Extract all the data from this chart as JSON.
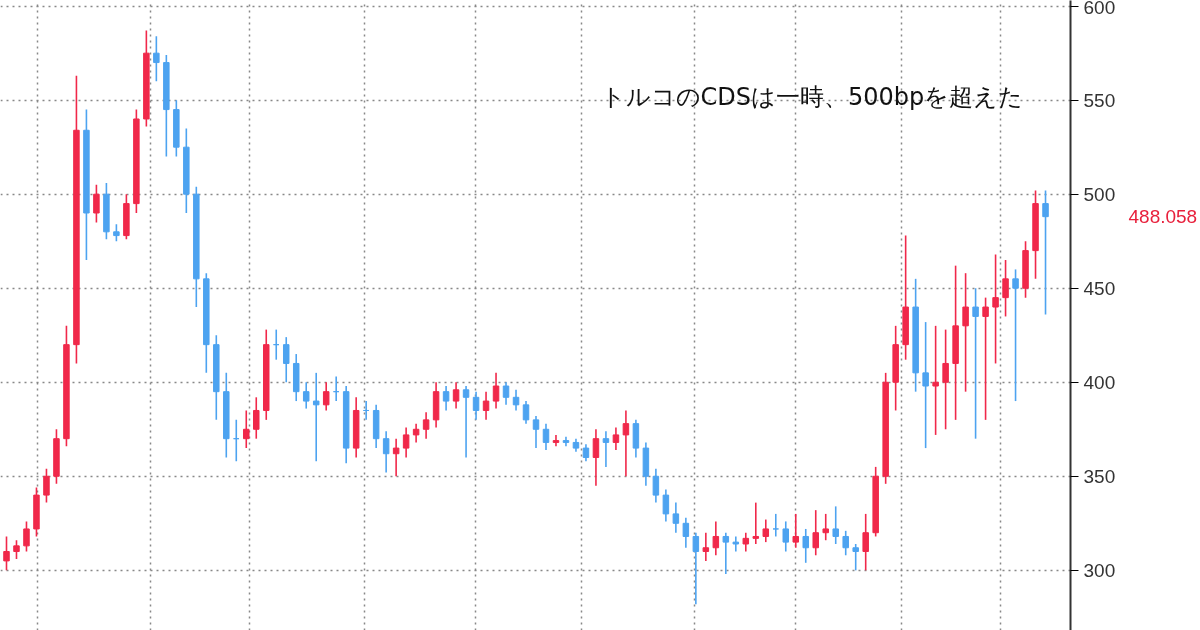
{
  "chart_data": {
    "type": "candlestick",
    "categories": [
      null,
      null,
      null,
      null,
      null,
      null,
      null,
      null,
      null,
      null,
      null,
      null,
      null,
      null,
      null,
      null,
      null,
      null,
      null,
      null,
      null,
      null,
      null,
      null,
      null,
      null,
      null,
      null,
      null,
      null,
      null,
      null,
      null,
      null,
      null,
      null,
      null,
      null,
      null,
      null,
      null,
      null,
      null,
      null,
      null,
      null,
      null,
      null,
      null,
      null,
      null,
      null,
      null,
      null,
      null,
      null,
      null,
      null,
      null,
      null,
      null,
      null,
      null,
      null,
      null,
      null,
      null,
      null,
      null,
      null,
      null,
      null,
      null,
      null,
      null,
      null,
      null,
      null,
      null,
      null,
      null,
      null,
      null,
      null,
      null,
      null,
      null,
      null,
      null,
      null,
      null,
      null,
      null,
      null,
      null,
      null,
      null,
      null,
      null,
      null,
      null,
      null,
      null,
      null,
      null
    ],
    "ohlc": [
      [
        305,
        318,
        300,
        310
      ],
      [
        310,
        316,
        306,
        313
      ],
      [
        313,
        326,
        310,
        322
      ],
      [
        322,
        344,
        318,
        340
      ],
      [
        340,
        354,
        336,
        350
      ],
      [
        350,
        375,
        346,
        370
      ],
      [
        370,
        430,
        366,
        420
      ],
      [
        420,
        563,
        410,
        534
      ],
      [
        534,
        545,
        465,
        490
      ],
      [
        490,
        505,
        485,
        500
      ],
      [
        500,
        506,
        476,
        480
      ],
      [
        480,
        484,
        475,
        478
      ],
      [
        478,
        500,
        476,
        495
      ],
      [
        495,
        545,
        490,
        540
      ],
      [
        540,
        587,
        536,
        575
      ],
      [
        575,
        584,
        560,
        570
      ],
      [
        570,
        574,
        520,
        545
      ],
      [
        545,
        550,
        520,
        525
      ],
      [
        525,
        535,
        490,
        500
      ],
      [
        500,
        504,
        440,
        455
      ],
      [
        455,
        458,
        405,
        420
      ],
      [
        420,
        425,
        380,
        395
      ],
      [
        395,
        405,
        360,
        370
      ],
      [
        370,
        380,
        358,
        370
      ],
      [
        370,
        385,
        365,
        375
      ],
      [
        375,
        392,
        370,
        385
      ],
      [
        385,
        428,
        380,
        420
      ],
      [
        420,
        428,
        412,
        420
      ],
      [
        420,
        424,
        400,
        410
      ],
      [
        410,
        415,
        390,
        395
      ],
      [
        395,
        400,
        386,
        390
      ],
      [
        390,
        405,
        358,
        388
      ],
      [
        388,
        400,
        385,
        395
      ],
      [
        395,
        403,
        390,
        395
      ],
      [
        395,
        398,
        357,
        365
      ],
      [
        365,
        392,
        360,
        385
      ],
      [
        385,
        390,
        380,
        385
      ],
      [
        385,
        388,
        365,
        370
      ],
      [
        370,
        374,
        352,
        362
      ],
      [
        362,
        370,
        350,
        365
      ],
      [
        365,
        376,
        360,
        372
      ],
      [
        372,
        378,
        368,
        375
      ],
      [
        375,
        384,
        370,
        380
      ],
      [
        380,
        400,
        376,
        395
      ],
      [
        395,
        398,
        385,
        390
      ],
      [
        390,
        400,
        386,
        396
      ],
      [
        396,
        398,
        360,
        392
      ],
      [
        392,
        395,
        380,
        385
      ],
      [
        385,
        395,
        380,
        390
      ],
      [
        390,
        405,
        386,
        398
      ],
      [
        398,
        400,
        388,
        392
      ],
      [
        392,
        396,
        385,
        388
      ],
      [
        388,
        390,
        378,
        380
      ],
      [
        380,
        382,
        365,
        375
      ],
      [
        375,
        378,
        364,
        368
      ],
      [
        368,
        372,
        366,
        369
      ],
      [
        369,
        371,
        366,
        368
      ],
      [
        368,
        370,
        363,
        365
      ],
      [
        365,
        367,
        358,
        360
      ],
      [
        360,
        375,
        345,
        370
      ],
      [
        370,
        374,
        355,
        368
      ],
      [
        368,
        376,
        364,
        372
      ],
      [
        372,
        385,
        350,
        378
      ],
      [
        378,
        380,
        360,
        365
      ],
      [
        365,
        368,
        345,
        350
      ],
      [
        350,
        354,
        336,
        340
      ],
      [
        340,
        343,
        326,
        330
      ],
      [
        330,
        336,
        320,
        325
      ],
      [
        325,
        328,
        312,
        318
      ],
      [
        318,
        320,
        282,
        310
      ],
      [
        310,
        320,
        305,
        312
      ],
      [
        312,
        326,
        308,
        318
      ],
      [
        318,
        320,
        298,
        315
      ],
      [
        315,
        318,
        310,
        314
      ],
      [
        314,
        320,
        310,
        317
      ],
      [
        317,
        336,
        314,
        318
      ],
      [
        318,
        327,
        315,
        322
      ],
      [
        322,
        330,
        318,
        322
      ],
      [
        322,
        326,
        310,
        315
      ],
      [
        315,
        330,
        312,
        318
      ],
      [
        318,
        322,
        304,
        312
      ],
      [
        312,
        332,
        308,
        320
      ],
      [
        320,
        330,
        316,
        322
      ],
      [
        322,
        334,
        314,
        318
      ],
      [
        318,
        321,
        308,
        312
      ],
      [
        312,
        314,
        300,
        310
      ],
      [
        310,
        330,
        300,
        320
      ],
      [
        320,
        355,
        318,
        350
      ],
      [
        350,
        405,
        346,
        400
      ],
      [
        400,
        430,
        385,
        420
      ],
      [
        420,
        478,
        412,
        440
      ],
      [
        440,
        455,
        395,
        405
      ],
      [
        405,
        432,
        365,
        398
      ],
      [
        398,
        430,
        372,
        400
      ],
      [
        400,
        428,
        375,
        410
      ],
      [
        410,
        462,
        380,
        430
      ],
      [
        430,
        458,
        395,
        440
      ],
      [
        440,
        450,
        370,
        435
      ],
      [
        435,
        445,
        380,
        440
      ],
      [
        440,
        468,
        410,
        445
      ],
      [
        445,
        465,
        435,
        455
      ],
      [
        455,
        460,
        390,
        450
      ],
      [
        450,
        475,
        445,
        470
      ],
      [
        470,
        502,
        455,
        495
      ],
      [
        495,
        502,
        436,
        488.058
      ]
    ],
    "colors": [
      "#f0284a",
      "#f0284a",
      "#f0284a",
      "#f0284a",
      "#f0284a",
      "#f0284a",
      "#f0284a",
      "#f0284a",
      "#4da3f0",
      "#f0284a",
      "#4da3f0",
      "#4da3f0",
      "#f0284a",
      "#f0284a",
      "#f0284a",
      "#4da3f0",
      "#4da3f0",
      "#4da3f0",
      "#4da3f0",
      "#4da3f0",
      "#4da3f0",
      "#4da3f0",
      "#4da3f0",
      "#4da3f0",
      "#f0284a",
      "#f0284a",
      "#f0284a",
      "#4da3f0",
      "#4da3f0",
      "#4da3f0",
      "#4da3f0",
      "#4da3f0",
      "#f0284a",
      "#4da3f0",
      "#4da3f0",
      "#f0284a",
      "#4da3f0",
      "#4da3f0",
      "#4da3f0",
      "#f0284a",
      "#f0284a",
      "#f0284a",
      "#f0284a",
      "#f0284a",
      "#4da3f0",
      "#f0284a",
      "#4da3f0",
      "#4da3f0",
      "#f0284a",
      "#f0284a",
      "#4da3f0",
      "#4da3f0",
      "#4da3f0",
      "#4da3f0",
      "#4da3f0",
      "#f0284a",
      "#4da3f0",
      "#4da3f0",
      "#4da3f0",
      "#f0284a",
      "#4da3f0",
      "#f0284a",
      "#f0284a",
      "#4da3f0",
      "#4da3f0",
      "#4da3f0",
      "#4da3f0",
      "#4da3f0",
      "#4da3f0",
      "#4da3f0",
      "#f0284a",
      "#f0284a",
      "#4da3f0",
      "#4da3f0",
      "#f0284a",
      "#f0284a",
      "#f0284a",
      "#4da3f0",
      "#4da3f0",
      "#f0284a",
      "#4da3f0",
      "#f0284a",
      "#f0284a",
      "#4da3f0",
      "#4da3f0",
      "#4da3f0",
      "#f0284a",
      "#f0284a",
      "#f0284a",
      "#f0284a",
      "#f0284a",
      "#4da3f0",
      "#4da3f0",
      "#f0284a",
      "#f0284a",
      "#f0284a",
      "#f0284a",
      "#4da3f0",
      "#f0284a",
      "#f0284a",
      "#f0284a",
      "#4da3f0",
      "#f0284a",
      "#f0284a",
      "#4da3f0"
    ],
    "ylim": [
      268,
      603
    ],
    "yticks": [
      300,
      350,
      400,
      450,
      500,
      550,
      600
    ],
    "grid": true,
    "tick_labels": "y",
    "annotations": [
      "トルコのCDSは一時、500bpを超えた",
      "488.058"
    ]
  }
}
